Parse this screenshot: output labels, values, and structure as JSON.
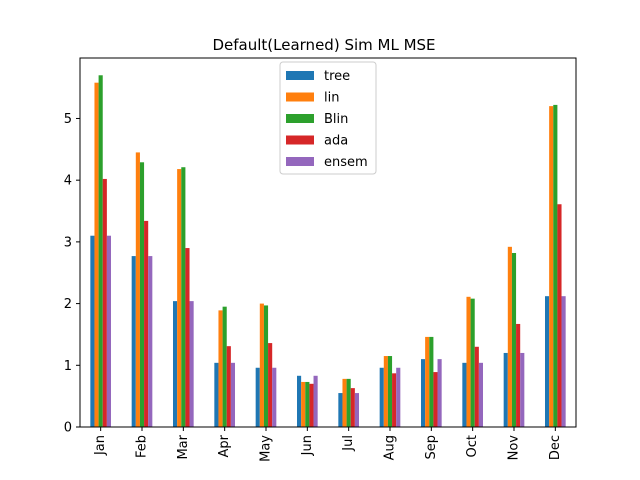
{
  "chart_data": {
    "type": "bar",
    "title": "Default(Learned) Sim ML MSE",
    "xlabel": "",
    "ylabel": "",
    "ylim": [
      0,
      5.98
    ],
    "yticks": [
      "0",
      "1",
      "2",
      "3",
      "4",
      "5"
    ],
    "categories": [
      "Jan",
      "Feb",
      "Mar",
      "Apr",
      "May",
      "Jun",
      "Jul",
      "Aug",
      "Sep",
      "Oct",
      "Nov",
      "Dec"
    ],
    "legend_position": "upper-center",
    "grid": false,
    "series": [
      {
        "name": "tree",
        "color": "#1f77b4",
        "values": [
          3.1,
          2.77,
          2.04,
          1.04,
          0.96,
          0.83,
          0.55,
          0.96,
          1.1,
          1.04,
          1.2,
          2.12
        ]
      },
      {
        "name": "lin",
        "color": "#ff7f0e",
        "values": [
          5.58,
          4.45,
          4.18,
          1.89,
          2.0,
          0.73,
          0.78,
          1.15,
          1.46,
          2.11,
          2.92,
          5.2
        ]
      },
      {
        "name": "Blin",
        "color": "#2ca02c",
        "values": [
          5.7,
          4.29,
          4.21,
          1.95,
          1.97,
          0.73,
          0.78,
          1.15,
          1.46,
          2.08,
          2.82,
          5.22
        ]
      },
      {
        "name": "ada",
        "color": "#d62728",
        "values": [
          4.02,
          3.34,
          2.9,
          1.31,
          1.36,
          0.7,
          0.63,
          0.87,
          0.89,
          1.3,
          1.67,
          3.61
        ]
      },
      {
        "name": "ensem",
        "color": "#9467bd",
        "values": [
          3.1,
          2.77,
          2.04,
          1.04,
          0.96,
          0.83,
          0.55,
          0.96,
          1.1,
          1.04,
          1.2,
          2.12
        ]
      }
    ]
  }
}
